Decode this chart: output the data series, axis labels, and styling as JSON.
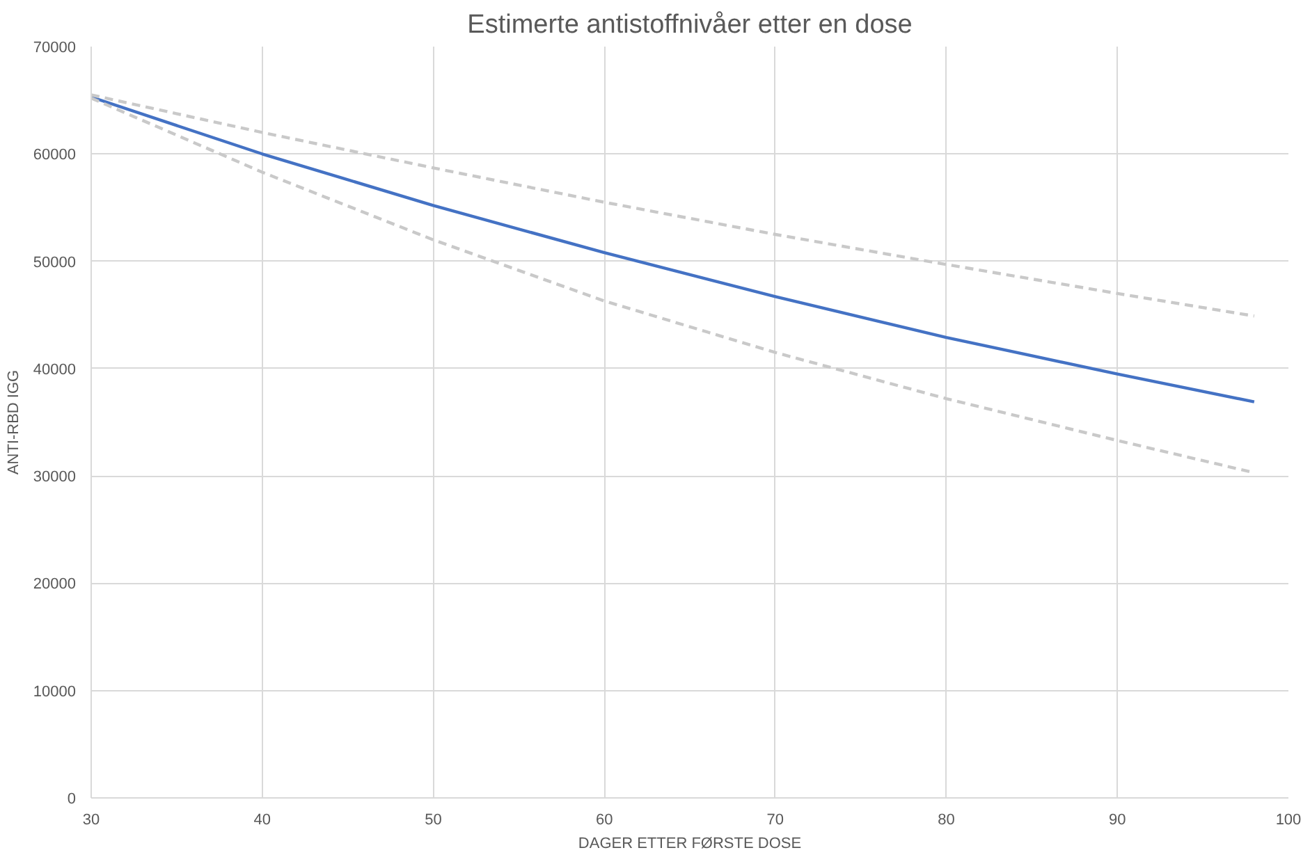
{
  "chart_data": {
    "type": "line",
    "title": "Estimerte antistoffnivåer etter en dose",
    "xlabel": "DAGER ETTER FØRSTE DOSE",
    "ylabel": "ANTI-RBD IGG",
    "x": [
      30,
      40,
      50,
      60,
      70,
      80,
      90,
      98
    ],
    "series": [
      {
        "color": "#4472c4",
        "line_style": "solid",
        "values": [
          65300,
          60000,
          55200,
          50800,
          46700,
          42900,
          39500,
          36900
        ]
      },
      {
        "color": "#c9c9c9",
        "line_style": "dashed",
        "values": [
          65500,
          62000,
          58700,
          55500,
          52500,
          49700,
          47000,
          44900
        ]
      },
      {
        "color": "#c9c9c9",
        "line_style": "dashed",
        "values": [
          65200,
          58300,
          52000,
          46300,
          41500,
          37200,
          33300,
          30300
        ]
      }
    ],
    "xlim": [
      30,
      100
    ],
    "xticks": [
      30,
      40,
      50,
      60,
      70,
      80,
      90,
      100
    ],
    "ylim": [
      0,
      70000
    ],
    "yticks": [
      0,
      10000,
      20000,
      30000,
      40000,
      50000,
      60000,
      70000
    ],
    "grid": true,
    "marker": "none"
  }
}
